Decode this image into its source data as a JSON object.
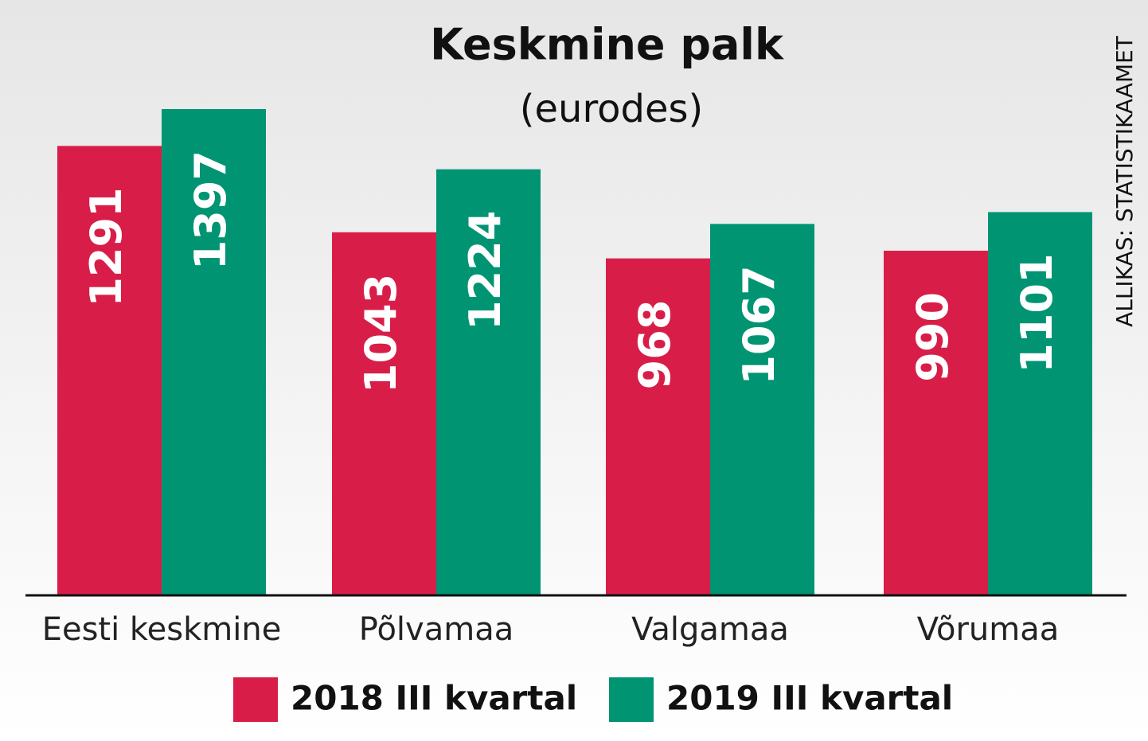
{
  "chart_data": {
    "type": "bar",
    "title": "Keskmine palk",
    "subtitle": "(eurodes)",
    "source": "ALLIKAS: STATISTIKAAMET",
    "categories": [
      "Eesti keskmine",
      "Põlvamaa",
      "Valgamaa",
      "Võrumaa"
    ],
    "series": [
      {
        "name": "2018 III kvartal",
        "color": "#d81e48",
        "values": [
          1291,
          1043,
          968,
          990
        ]
      },
      {
        "name": "2019 III kvartal",
        "color": "#009473",
        "values": [
          1397,
          1224,
          1067,
          1101
        ]
      }
    ]
  }
}
